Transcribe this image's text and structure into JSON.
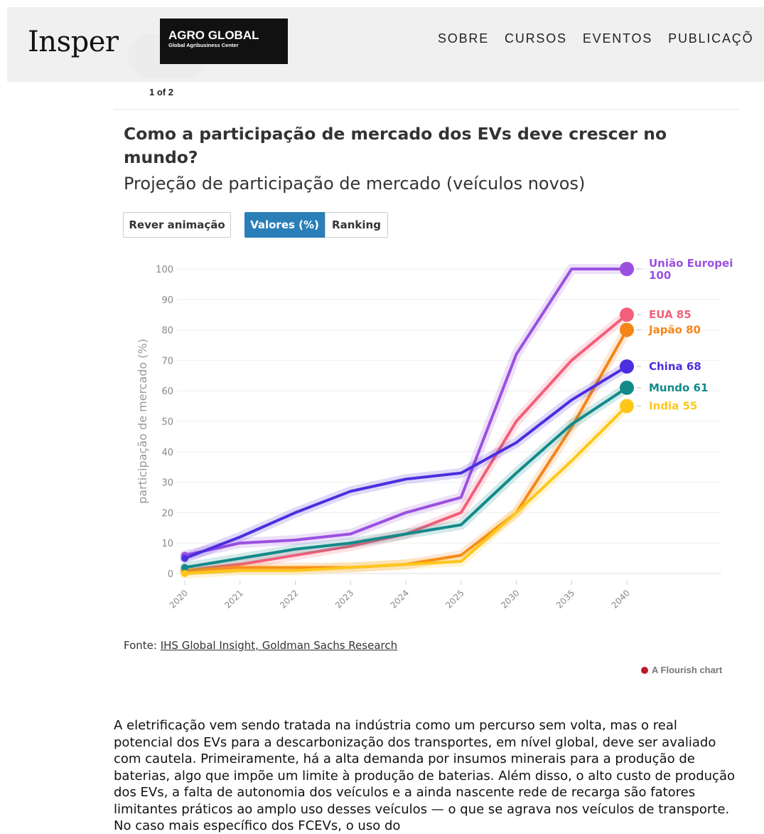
{
  "header": {
    "logo_text": "Insper",
    "agro_title": "AGRO GLOBAL",
    "agro_subtitle": "Global Agribusiness Center",
    "nav": [
      "SOBRE",
      "CURSOS",
      "EVENTOS",
      "PUBLICAÇÕ"
    ]
  },
  "pager": "1 of 2",
  "chart": {
    "title": "Como a participação de mercado dos EVs deve crescer no mundo?",
    "subtitle": "Projeção de participação de mercado (veículos novos)",
    "buttons": {
      "replay": "Rever animação",
      "values": "Valores (%)",
      "ranking": "Ranking"
    },
    "source_prefix": "Fonte: ",
    "source_link": "IHS Global Insight, Goldman Sachs Research",
    "flourish_label": "A Flourish chart"
  },
  "chart_data": {
    "type": "line",
    "ylabel": "participação de mercado (%)",
    "xlabel": "",
    "ylim": [
      0,
      100
    ],
    "yticks": [
      0,
      10,
      20,
      30,
      40,
      50,
      60,
      70,
      80,
      90,
      100
    ],
    "x": [
      "2020",
      "2021",
      "2022",
      "2023",
      "2024",
      "2025",
      "2030",
      "2035",
      "2040"
    ],
    "grid": true,
    "series": [
      {
        "name": "União Europeia",
        "label": "União Europei",
        "value_label": "100",
        "color": "#9b51e0",
        "values": [
          6,
          10,
          11,
          13,
          20,
          25,
          72,
          100,
          100
        ]
      },
      {
        "name": "EUA",
        "label": "EUA 85",
        "color": "#f25f7a",
        "values": [
          1,
          3,
          6,
          9,
          13,
          20,
          50,
          70,
          85
        ]
      },
      {
        "name": "Japão",
        "label": "Japão 80",
        "color": "#f58518",
        "values": [
          1,
          2,
          2,
          2,
          3,
          6,
          20,
          48,
          80
        ]
      },
      {
        "name": "China",
        "label": "China 68",
        "color": "#4c2ee0",
        "values": [
          5,
          12,
          20,
          27,
          31,
          33,
          43,
          57,
          68
        ]
      },
      {
        "name": "Mundo",
        "label": "Mundo 61",
        "color": "#138a8a",
        "values": [
          2,
          5,
          8,
          10,
          13,
          16,
          33,
          49,
          61
        ]
      },
      {
        "name": "India",
        "label": "India 55",
        "color": "#ffc61a",
        "values": [
          0,
          1,
          1,
          2,
          3,
          4,
          20,
          37,
          55
        ]
      }
    ]
  },
  "article": {
    "text": "A eletrificação vem sendo tratada na indústria como um percurso sem volta, mas o real potencial dos EVs para a descarbonização dos transportes, em nível global, deve ser avaliado com cautela. Primeiramente, há a alta demanda por insumos minerais para a produção de baterias, algo que impõe um limite à produção de baterias. Além disso, o alto custo de produção dos EVs, a falta de autonomia dos veículos e a ainda nascente rede de recarga são fatores limitantes práticos ao amplo uso desses veículos — o que se agrava nos veículos de transporte. No caso mais específico dos FCEVs, o uso do"
  }
}
